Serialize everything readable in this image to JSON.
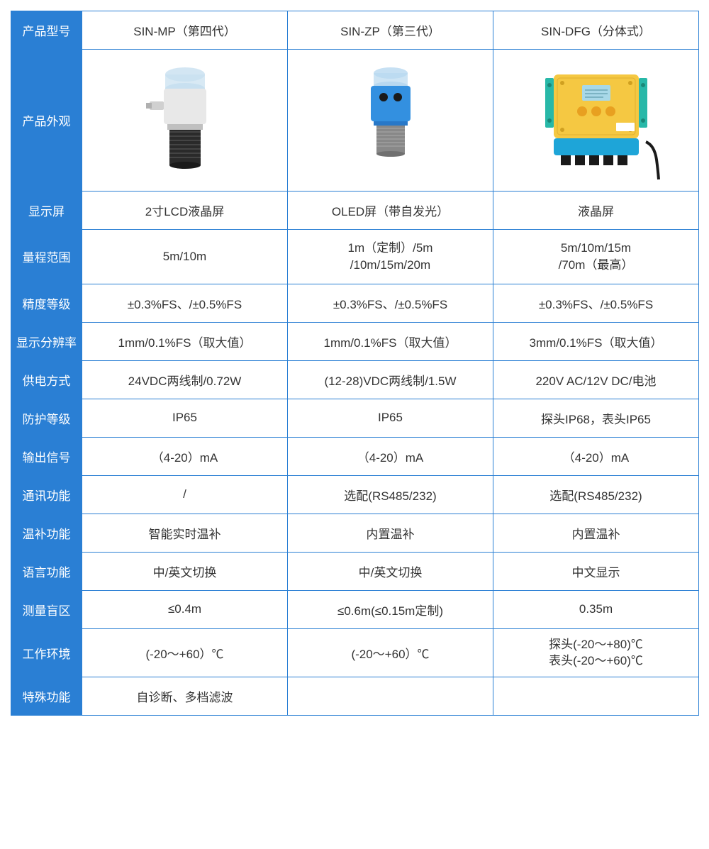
{
  "table": {
    "header_bg_color": "#2a7fd4",
    "header_text_color": "#ffffff",
    "border_color": "#2a7fd4",
    "cell_bg_color": "#ffffff",
    "cell_text_color": "#333333",
    "font_size_header": 17,
    "font_size_cell": 17,
    "column_headers": {
      "label": "产品型号",
      "col1": "SIN-MP（第四代）",
      "col2": "SIN-ZP（第三代）",
      "col3": "SIN-DFG（分体式）"
    },
    "rows": [
      {
        "label": "产品外观",
        "type": "image"
      },
      {
        "label": "显示屏",
        "col1": "2寸LCD液晶屏",
        "col2": "OLED屏（带自发光）",
        "col3": "液晶屏"
      },
      {
        "label": "量程范围",
        "col1": "5m/10m",
        "col2": "1m（定制）/5m\n/10m/15m/20m",
        "col3": "5m/10m/15m\n/70m（最高）"
      },
      {
        "label": "精度等级",
        "col1": "±0.3%FS、/±0.5%FS",
        "col2": "±0.3%FS、/±0.5%FS",
        "col3": "±0.3%FS、/±0.5%FS"
      },
      {
        "label": "显示分辨率",
        "col1": "1mm/0.1%FS（取大值）",
        "col2": "1mm/0.1%FS（取大值）",
        "col3": "3mm/0.1%FS（取大值）"
      },
      {
        "label": "供电方式",
        "col1": "24VDC两线制/0.72W",
        "col2": "(12-28)VDC两线制/1.5W",
        "col3": "220V AC/12V DC/电池"
      },
      {
        "label": "防护等级",
        "col1": "IP65",
        "col2": "IP65",
        "col3": "探头IP68，表头IP65"
      },
      {
        "label": "输出信号",
        "col1": "（4-20）mA",
        "col2": "（4-20）mA",
        "col3": "（4-20）mA"
      },
      {
        "label": "通讯功能",
        "col1": "/",
        "col2": "选配(RS485/232)",
        "col3": "选配(RS485/232)"
      },
      {
        "label": "温补功能",
        "col1": "智能实时温补",
        "col2": "内置温补",
        "col3": "内置温补"
      },
      {
        "label": "语言功能",
        "col1": "中/英文切换",
        "col2": "中/英文切换",
        "col3": "中文显示"
      },
      {
        "label": "测量盲区",
        "col1": "≤0.4m",
        "col2": "≤0.6m(≤0.15m定制)",
        "col3": "0.35m"
      },
      {
        "label": "工作环境",
        "col1": "(-20～+60）℃",
        "col2": "(-20～+60）℃",
        "col3": "探头(-20～+80)℃\n表头(-20～+60)℃"
      },
      {
        "label": "特殊功能",
        "col1": "自诊断、多档滤波",
        "col2": "",
        "col3": ""
      }
    ],
    "product_images": {
      "sin_mp": {
        "cap_color": "#c8e0f0",
        "body_color": "#e8e8e8",
        "sensor_color": "#2a2a2a",
        "nozzle_color": "#d0d0d0"
      },
      "sin_zp": {
        "cap_color": "#b8d8f0",
        "body_color": "#3390e0",
        "sensor_color": "#888888",
        "eye_color": "#1a1a1a"
      },
      "sin_dfg": {
        "box_color": "#f5c842",
        "screen_bg": "#a8d8e8",
        "button_color": "#e8a020",
        "bottom_color": "#1ea5d8",
        "bracket_color": "#28b8a8",
        "connector_color": "#1a1a1a"
      }
    }
  }
}
